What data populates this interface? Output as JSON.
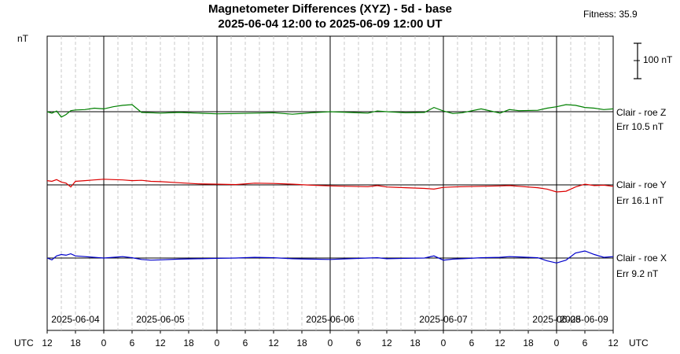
{
  "chart_data": {
    "type": "line",
    "title": "Magnetometer Differences (XYZ) - 5d - base",
    "subtitle": "2025-06-04 12:00 to 2025-06-09 12:00 UT",
    "fitness": "Fitness: 35.9",
    "ylabel": "nT",
    "scale_bar_label": "100 nT",
    "scale_bar_nT": 100,
    "x_range_hours": [
      0,
      120
    ],
    "xlabel_left": "UTC",
    "xlabel_right": "UTC",
    "grid": true,
    "day_labels": [
      {
        "label": "2025-06-04",
        "hour": 6
      },
      {
        "label": "2025-06-05",
        "hour": 24
      },
      {
        "label": "2025-06-06",
        "hour": 60
      },
      {
        "label": "2025-06-07",
        "hour": 84
      },
      {
        "label": "2025-06-08",
        "hour": 108
      },
      {
        "label": "2025-06-09",
        "hour": 126
      }
    ],
    "hour_ticks": [
      "12",
      "18",
      "0",
      "6",
      "12",
      "18",
      "0",
      "6",
      "12",
      "18",
      "0",
      "6",
      "12",
      "18",
      "0",
      "6",
      "12",
      "18",
      "0",
      "6",
      "12"
    ],
    "series": [
      {
        "name": "Clair - roe Z",
        "err": "Err 10.5 nT",
        "color": "#008000",
        "offset_rank": 0,
        "hours": [
          0,
          1,
          2,
          3,
          4,
          5,
          6,
          8,
          10,
          12,
          14,
          16,
          18,
          20,
          22,
          24,
          28,
          32,
          36,
          40,
          44,
          48,
          52,
          56,
          60,
          64,
          68,
          70,
          72,
          76,
          80,
          82,
          84,
          86,
          88,
          92,
          96,
          98,
          100,
          104,
          106,
          108,
          110,
          112,
          114,
          116,
          118,
          120
        ],
        "values": [
          0,
          -4,
          2,
          -15,
          -8,
          3,
          5,
          6,
          10,
          8,
          14,
          18,
          20,
          -2,
          -3,
          -4,
          -2,
          -4,
          -6,
          -5,
          -4,
          -3,
          -7,
          -3,
          0,
          -2,
          -4,
          2,
          0,
          -3,
          -2,
          12,
          2,
          -5,
          -3,
          8,
          -4,
          6,
          3,
          4,
          10,
          14,
          20,
          18,
          12,
          10,
          6,
          8
        ]
      },
      {
        "name": "Clair - roe Y",
        "err": "Err 16.1 nT",
        "color": "#dd0000",
        "offset_rank": 1,
        "hours": [
          0,
          1,
          2,
          3,
          4,
          5,
          6,
          8,
          10,
          12,
          14,
          16,
          18,
          20,
          22,
          24,
          28,
          32,
          36,
          40,
          44,
          48,
          52,
          56,
          60,
          64,
          68,
          70,
          72,
          76,
          80,
          82,
          84,
          86,
          88,
          92,
          96,
          98,
          100,
          104,
          106,
          108,
          110,
          112,
          114,
          116,
          118,
          120
        ],
        "values": [
          12,
          10,
          15,
          8,
          5,
          -6,
          10,
          12,
          14,
          16,
          15,
          14,
          12,
          13,
          10,
          9,
          6,
          3,
          2,
          1,
          5,
          4,
          2,
          -1,
          -3,
          -4,
          -5,
          -2,
          -6,
          -8,
          -10,
          -12,
          -7,
          -6,
          -5,
          -4,
          -3,
          -2,
          -4,
          -8,
          -12,
          -20,
          -18,
          -6,
          2,
          -2,
          -1,
          -4
        ]
      },
      {
        "name": "Clair - roe X",
        "err": "Err 9.2 nT",
        "color": "#0000cc",
        "offset_rank": 2,
        "hours": [
          0,
          1,
          2,
          3,
          4,
          5,
          6,
          8,
          10,
          12,
          14,
          16,
          18,
          20,
          22,
          24,
          28,
          32,
          36,
          40,
          44,
          48,
          52,
          56,
          60,
          64,
          68,
          70,
          72,
          76,
          80,
          82,
          84,
          86,
          88,
          92,
          96,
          98,
          100,
          104,
          106,
          108,
          110,
          112,
          114,
          116,
          118,
          120
        ],
        "values": [
          0,
          -5,
          6,
          10,
          8,
          12,
          6,
          4,
          2,
          0,
          2,
          4,
          1,
          -4,
          -6,
          -5,
          -3,
          -2,
          -1,
          0,
          2,
          1,
          -2,
          -3,
          -4,
          -2,
          0,
          1,
          -2,
          -1,
          0,
          6,
          -6,
          -3,
          -2,
          1,
          2,
          4,
          3,
          1,
          -8,
          -14,
          -6,
          14,
          20,
          10,
          2,
          4
        ]
      }
    ]
  }
}
